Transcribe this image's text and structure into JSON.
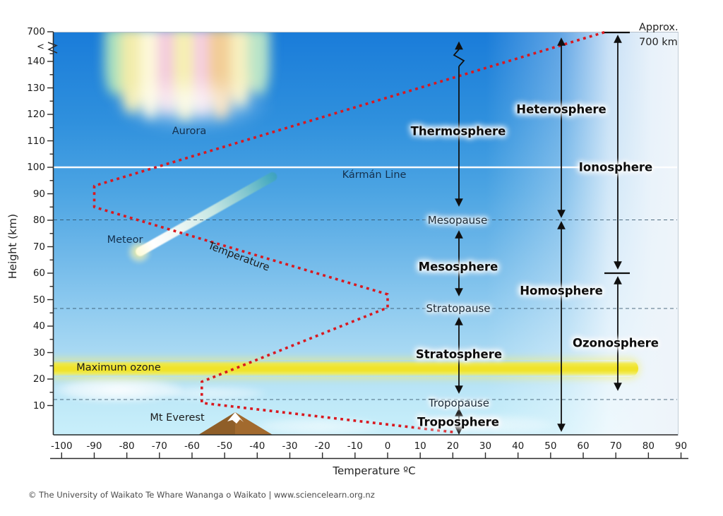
{
  "axes": {
    "y": {
      "title": "Height (km)",
      "tick_labels": [
        "700",
        "140",
        "130",
        "120",
        "110",
        "100",
        "90",
        "80",
        "70",
        "60",
        "50",
        "40",
        "30",
        "20",
        "10"
      ]
    },
    "x": {
      "title": "Temperature ºC",
      "tick_labels": [
        "-100",
        "-90",
        "-80",
        "-70",
        "-60",
        "-50",
        "-40",
        "-30",
        "-20",
        "-10",
        "0",
        "10",
        "20",
        "30",
        "40",
        "50",
        "60",
        "70",
        "80",
        "90"
      ]
    }
  },
  "layer_labels": {
    "thermosphere": "Thermosphere",
    "mesosphere": "Mesosphere",
    "stratosphere": "Stratosphere",
    "troposphere": "Troposphere",
    "heterosphere": "Heterosphere",
    "ionosphere": "Ionosphere",
    "homosphere": "Homosphere",
    "ozonosphere": "Ozonosphere"
  },
  "boundary_labels": {
    "mesopause": "Mesopause",
    "stratopause": "Stratopause",
    "tropopause": "Tropopause"
  },
  "annotation_labels": {
    "aurora": "Aurora",
    "karman_line": "Kármán Line",
    "meteor": "Meteor",
    "temperature_curve": "Temperature",
    "maximum_ozone": "Maximum ozone",
    "mt_everest": "Mt Everest",
    "approx_line1": "Approx.",
    "approx_line2": "700 km"
  },
  "footer": "© The University of Waikato Te Whare Wananga o Waikato | www.sciencelearn.org.nz",
  "colors": {
    "temperature_curve": "#d9181f",
    "ozone_band": "#f0e32a",
    "karman_line": "#ffffff",
    "sky_top": "#1a7cd9",
    "sky_bottom": "#c9effa",
    "dashed_boundary": "#2e4d63",
    "arrow": "#101010"
  },
  "chart_data": {
    "type": "line",
    "title": "Atmospheric layers: temperature profile vs height",
    "xlabel": "Temperature ºC",
    "ylabel": "Height (km)",
    "x_range": [
      -100,
      90
    ],
    "y_ticks_km": [
      700,
      140,
      130,
      120,
      110,
      100,
      90,
      80,
      70,
      60,
      50,
      40,
      30,
      20,
      10
    ],
    "axis_break": "between 140 km and 700 km",
    "series": [
      {
        "name": "Temperature",
        "style": "red dotted",
        "points_t_km": [
          [
            20,
            0
          ],
          [
            -57,
            11
          ],
          [
            -57,
            19
          ],
          [
            0,
            47
          ],
          [
            0,
            52
          ],
          [
            -90,
            85
          ],
          [
            -90,
            93
          ],
          [
            67,
            700
          ]
        ]
      }
    ],
    "boundaries_km": {
      "tropopause": 12,
      "stratopause": 47,
      "mesopause": 80,
      "karman_line": 100,
      "top": 700
    },
    "features": {
      "maximum_ozone_band_km": [
        21,
        27
      ],
      "mt_everest_peak_km": 8.8,
      "meteor_burn_km": [
        68,
        98
      ],
      "aurora_km": [
        100,
        150
      ]
    }
  }
}
